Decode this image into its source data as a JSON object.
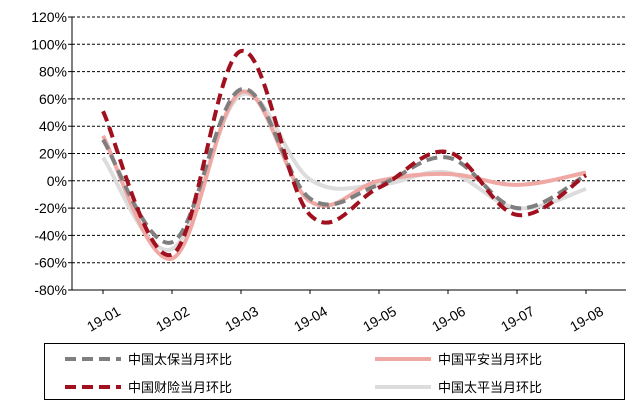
{
  "chart_data": {
    "type": "line",
    "title": "",
    "xlabel": "",
    "ylabel": "",
    "categories": [
      "19-01",
      "19-02",
      "19-03",
      "19-04",
      "19-05",
      "19-06",
      "19-07",
      "19-08"
    ],
    "y_ticks": [
      "120%",
      "100%",
      "80%",
      "60%",
      "40%",
      "20%",
      "0%",
      "-20%",
      "-40%",
      "-60%",
      "-80%"
    ],
    "ylim": [
      -80,
      120
    ],
    "y_unit": "%",
    "grid": "horizontal-dashed",
    "legend_position": "bottom",
    "series": [
      {
        "name": "中国太保当月环比",
        "color": "#7f7f7f",
        "style": "dashed",
        "values": [
          30,
          -45,
          67,
          -13,
          -3,
          17,
          -20,
          4
        ]
      },
      {
        "name": "中国平安当月环比",
        "color": "#f0a8a4",
        "style": "solid",
        "values": [
          33,
          -57,
          65,
          -15,
          0,
          5,
          -3,
          6
        ]
      },
      {
        "name": "中国财险当月环比",
        "color": "#a0101e",
        "style": "dashed",
        "values": [
          51,
          -54,
          95,
          -25,
          -5,
          21,
          -25,
          4
        ]
      },
      {
        "name": "中国太平当月环比",
        "color": "#dcdcdc",
        "style": "solid",
        "values": [
          17,
          -50,
          63,
          1,
          -3,
          6,
          -20,
          -6
        ]
      }
    ]
  }
}
